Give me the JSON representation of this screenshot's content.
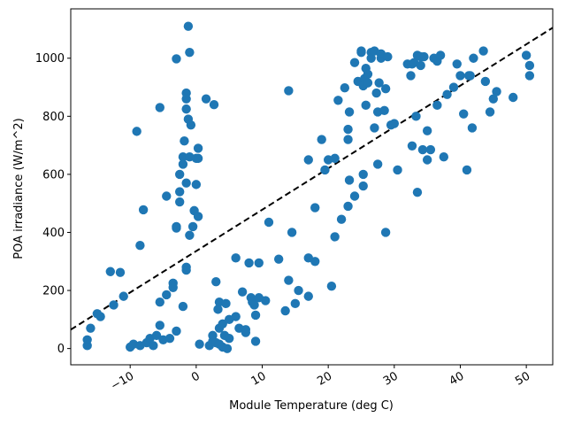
{
  "chart_data": {
    "type": "scatter",
    "xlabel": "Module Temperature (deg C)",
    "ylabel": "POA irradiance (W/m^2)",
    "xlim": [
      -19,
      54
    ],
    "ylim": [
      -56,
      1170
    ],
    "x_ticks": [
      -10,
      0,
      10,
      20,
      30,
      40,
      50
    ],
    "x_tick_labels": [
      "−10",
      "0",
      "10",
      "20",
      "30",
      "40",
      "50"
    ],
    "x_tick_rotation_deg": 30,
    "y_ticks": [
      0,
      200,
      400,
      600,
      800,
      1000
    ],
    "y_tick_labels": [
      "0",
      "200",
      "400",
      "600",
      "800",
      "1000"
    ],
    "grid": false,
    "colors": {
      "points": "#1f77b4",
      "fit_line": "#000000"
    },
    "fit_line": {
      "style": "dashed",
      "x": [
        -19,
        54
      ],
      "y": [
        65,
        1105
      ]
    },
    "series": [
      {
        "points": [
          [
            -16.5,
            10
          ],
          [
            -16.5,
            30
          ],
          [
            -16,
            70
          ],
          [
            -15,
            120
          ],
          [
            -14.5,
            110
          ],
          [
            -13,
            265
          ],
          [
            -12.5,
            150
          ],
          [
            -11.5,
            262
          ],
          [
            -11,
            180
          ],
          [
            -10,
            5
          ],
          [
            -9.5,
            15
          ],
          [
            -9,
            748
          ],
          [
            -8.5,
            355
          ],
          [
            -8.5,
            10
          ],
          [
            -8,
            478
          ],
          [
            -7.5,
            20
          ],
          [
            -7,
            35
          ],
          [
            -6.5,
            10
          ],
          [
            -6,
            45
          ],
          [
            -5.5,
            830
          ],
          [
            -5.5,
            160
          ],
          [
            -5.5,
            80
          ],
          [
            -5,
            30
          ],
          [
            -4.5,
            185
          ],
          [
            -4.5,
            525
          ],
          [
            -4,
            35
          ],
          [
            -3.5,
            225
          ],
          [
            -3.5,
            210
          ],
          [
            -3,
            998
          ],
          [
            -3,
            420
          ],
          [
            -3,
            415
          ],
          [
            -3,
            60
          ],
          [
            -2.5,
            505
          ],
          [
            -2.5,
            540
          ],
          [
            -2.5,
            600
          ],
          [
            -2,
            660
          ],
          [
            -2,
            635
          ],
          [
            -2,
            145
          ],
          [
            -1.8,
            715
          ],
          [
            -1.5,
            880
          ],
          [
            -1.5,
            860
          ],
          [
            -1.5,
            825
          ],
          [
            -1.5,
            570
          ],
          [
            -1.5,
            280
          ],
          [
            -1.5,
            270
          ],
          [
            -1.2,
            1110
          ],
          [
            -1.2,
            790
          ],
          [
            -1,
            1020
          ],
          [
            -1,
            660
          ],
          [
            -1,
            390
          ],
          [
            -0.8,
            770
          ],
          [
            -0.5,
            420
          ],
          [
            -0.3,
            475
          ],
          [
            0,
            655
          ],
          [
            0,
            565
          ],
          [
            0.3,
            690
          ],
          [
            0.3,
            655
          ],
          [
            0.3,
            455
          ],
          [
            0.5,
            15
          ],
          [
            1.5,
            860
          ],
          [
            2,
            10
          ],
          [
            2.5,
            25
          ],
          [
            2.5,
            45
          ],
          [
            2.7,
            840
          ],
          [
            3,
            230
          ],
          [
            3,
            20
          ],
          [
            3.3,
            135
          ],
          [
            3.5,
            160
          ],
          [
            3.5,
            70
          ],
          [
            3.5,
            15
          ],
          [
            4,
            85
          ],
          [
            4,
            5
          ],
          [
            4.3,
            45
          ],
          [
            4.5,
            155
          ],
          [
            4.7,
            0
          ],
          [
            5,
            100
          ],
          [
            5,
            35
          ],
          [
            6,
            312
          ],
          [
            6,
            110
          ],
          [
            6.5,
            70
          ],
          [
            7,
            195
          ],
          [
            7.5,
            65
          ],
          [
            7.5,
            55
          ],
          [
            8,
            295
          ],
          [
            8.3,
            175
          ],
          [
            8.5,
            160
          ],
          [
            8.8,
            150
          ],
          [
            9,
            115
          ],
          [
            9,
            25
          ],
          [
            9.5,
            175
          ],
          [
            9.5,
            295
          ],
          [
            10.5,
            165
          ],
          [
            11,
            435
          ],
          [
            12.5,
            308
          ],
          [
            13.5,
            130
          ],
          [
            14,
            235
          ],
          [
            14,
            888
          ],
          [
            14.5,
            400
          ],
          [
            15,
            155
          ],
          [
            15.5,
            200
          ],
          [
            17,
            650
          ],
          [
            17,
            180
          ],
          [
            17,
            312
          ],
          [
            18,
            485
          ],
          [
            18,
            300
          ],
          [
            19,
            720
          ],
          [
            19.5,
            615
          ],
          [
            20,
            650
          ],
          [
            20.5,
            215
          ],
          [
            21,
            385
          ],
          [
            21,
            655
          ],
          [
            21.5,
            855
          ],
          [
            22,
            445
          ],
          [
            22.5,
            898
          ],
          [
            23,
            755
          ],
          [
            23,
            720
          ],
          [
            23,
            490
          ],
          [
            23.2,
            580
          ],
          [
            23.2,
            815
          ],
          [
            24,
            525
          ],
          [
            24,
            985
          ],
          [
            24.5,
            920
          ],
          [
            25,
            1025
          ],
          [
            25,
            1020
          ],
          [
            25.3,
            905
          ],
          [
            25.3,
            600
          ],
          [
            25.3,
            560
          ],
          [
            25.5,
            930
          ],
          [
            25.7,
            965
          ],
          [
            25.7,
            838
          ],
          [
            26,
            945
          ],
          [
            26,
            915
          ],
          [
            26.5,
            1020
          ],
          [
            26.5,
            1000
          ],
          [
            27,
            760
          ],
          [
            27,
            1025
          ],
          [
            27.3,
            880
          ],
          [
            27.5,
            815
          ],
          [
            27.5,
            635
          ],
          [
            27.7,
            915
          ],
          [
            28,
            1000
          ],
          [
            28,
            1015
          ],
          [
            28.5,
            820
          ],
          [
            28.7,
            400
          ],
          [
            28.7,
            895
          ],
          [
            29,
            1005
          ],
          [
            29.5,
            770
          ],
          [
            30,
            775
          ],
          [
            30.5,
            615
          ],
          [
            32,
            980
          ],
          [
            32.5,
            940
          ],
          [
            32.7,
            698
          ],
          [
            32.7,
            980
          ],
          [
            33,
            985
          ],
          [
            33.3,
            800
          ],
          [
            33.5,
            538
          ],
          [
            33.5,
            1010
          ],
          [
            34,
            1005
          ],
          [
            34,
            975
          ],
          [
            34.3,
            685
          ],
          [
            34.5,
            1005
          ],
          [
            35,
            750
          ],
          [
            35,
            650
          ],
          [
            35.5,
            685
          ],
          [
            36,
            1000
          ],
          [
            36.5,
            990
          ],
          [
            36.5,
            838
          ],
          [
            37,
            1010
          ],
          [
            37.5,
            660
          ],
          [
            38,
            875
          ],
          [
            39,
            900
          ],
          [
            39.5,
            980
          ],
          [
            40,
            940
          ],
          [
            40.5,
            808
          ],
          [
            41,
            615
          ],
          [
            41.3,
            940
          ],
          [
            41.5,
            940
          ],
          [
            41.8,
            760
          ],
          [
            42,
            1000
          ],
          [
            43.5,
            1025
          ],
          [
            43.8,
            920
          ],
          [
            44.5,
            815
          ],
          [
            45,
            860
          ],
          [
            45.5,
            885
          ],
          [
            48,
            865
          ],
          [
            50,
            1010
          ],
          [
            50.5,
            975
          ],
          [
            50.5,
            940
          ]
        ]
      }
    ]
  }
}
